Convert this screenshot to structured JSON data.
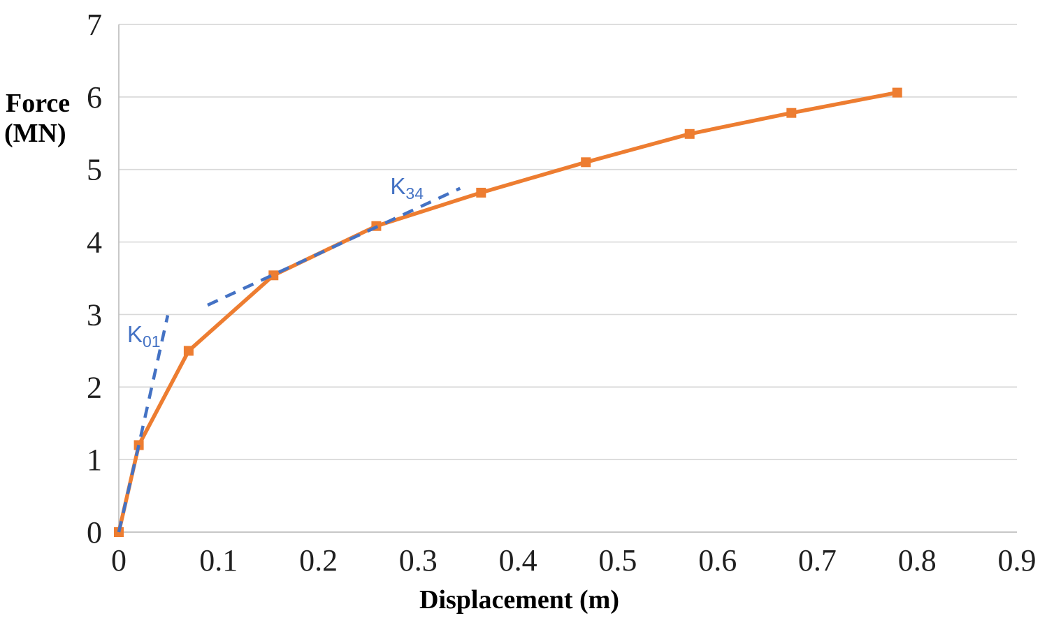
{
  "chart_data": {
    "type": "line",
    "title": "",
    "xlabel": "Displacement (m)",
    "ylabel": "Force (MN)",
    "ylabel_lines": [
      "Force",
      "(MN)"
    ],
    "xlim": [
      0,
      0.9
    ],
    "ylim": [
      0,
      7
    ],
    "x_ticks": [
      0,
      0.1,
      0.2,
      0.3,
      0.4,
      0.5,
      0.6,
      0.7,
      0.8,
      0.9
    ],
    "y_ticks": [
      0,
      1,
      2,
      3,
      4,
      5,
      6,
      7
    ],
    "grid": "horizontal-only",
    "legend": "none",
    "colors": {
      "curve": "#ED7D31",
      "stiffness_lines": "#4472C4",
      "gridline": "#D9D9D9",
      "axis_line": "#BFBFBF",
      "tick_text": "#1F1F1F",
      "title_text": "#000000"
    },
    "series": [
      {
        "name": "force-displacement-curve",
        "color": "#ED7D31",
        "style": "solid",
        "marker": "square",
        "points": [
          [
            0,
            0
          ],
          [
            0.02,
            1.2
          ],
          [
            0.07,
            2.5
          ],
          [
            0.155,
            3.54
          ],
          [
            0.258,
            4.22
          ],
          [
            0.363,
            4.68
          ],
          [
            0.468,
            5.1
          ],
          [
            0.572,
            5.49
          ],
          [
            0.674,
            5.78
          ],
          [
            0.78,
            6.06
          ]
        ]
      },
      {
        "name": "K01-secant-stiffness-line",
        "color": "#4472C4",
        "style": "dashed",
        "marker": "none",
        "points": [
          [
            0,
            0
          ],
          [
            0.02,
            1.2
          ],
          [
            0.049,
            2.99
          ]
        ]
      },
      {
        "name": "K34-secant-stiffness-line",
        "color": "#4472C4",
        "style": "dashed",
        "marker": "none",
        "points": [
          [
            0.089,
            3.13
          ],
          [
            0.342,
            4.74
          ]
        ]
      }
    ],
    "annotations": [
      {
        "id": "k01",
        "main": "K",
        "sub": "01",
        "x": 0.0084,
        "y": 2.62,
        "color": "#4472C4"
      },
      {
        "id": "k34",
        "main": "K",
        "sub": "34",
        "x": 0.272,
        "y": 4.66,
        "color": "#4472C4"
      }
    ]
  }
}
